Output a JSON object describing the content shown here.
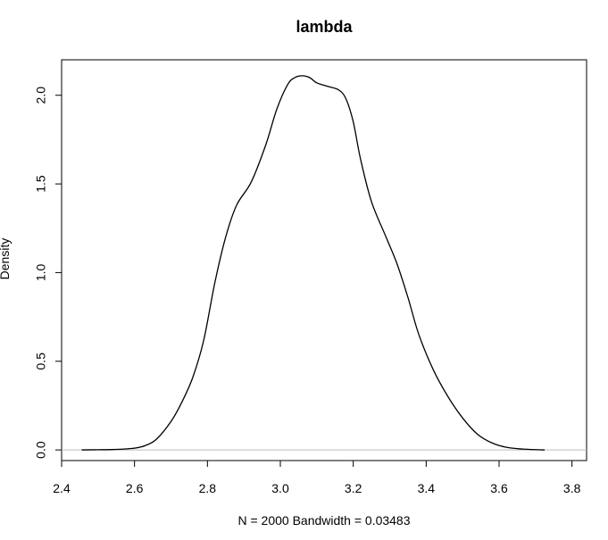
{
  "chart_data": {
    "type": "line",
    "title": "lambda",
    "xlabel": "N = 2000   Bandwidth = 0.03483",
    "ylabel": "Density",
    "xlim": [
      2.4,
      3.84
    ],
    "ylim": [
      -0.06,
      2.2
    ],
    "xticks": [
      "2.4",
      "2.6",
      "2.8",
      "3.0",
      "3.2",
      "3.4",
      "3.6",
      "3.8"
    ],
    "yticks": [
      "0.0",
      "0.5",
      "1.0",
      "1.5",
      "2.0"
    ],
    "grid": false,
    "baseline": 0,
    "series": [
      {
        "x": [
          2.455,
          2.5,
          2.55,
          2.6,
          2.63,
          2.66,
          2.7,
          2.73,
          2.76,
          2.79,
          2.82,
          2.85,
          2.88,
          2.92,
          2.96,
          2.99,
          3.02,
          3.04,
          3.06,
          3.08,
          3.1,
          3.13,
          3.16,
          3.18,
          3.2,
          3.22,
          3.25,
          3.29,
          3.32,
          3.35,
          3.38,
          3.42,
          3.46,
          3.5,
          3.54,
          3.58,
          3.62,
          3.67,
          3.725
        ],
        "y": [
          0.0,
          0.001,
          0.003,
          0.01,
          0.025,
          0.06,
          0.16,
          0.27,
          0.41,
          0.62,
          0.94,
          1.2,
          1.38,
          1.51,
          1.72,
          1.92,
          2.06,
          2.1,
          2.11,
          2.1,
          2.07,
          2.05,
          2.03,
          1.98,
          1.85,
          1.64,
          1.4,
          1.2,
          1.05,
          0.86,
          0.65,
          0.45,
          0.3,
          0.18,
          0.09,
          0.04,
          0.015,
          0.004,
          0.0
        ]
      }
    ],
    "colors": {
      "line": "#000000",
      "baseline": "#bebebe",
      "box": "#000000"
    }
  }
}
